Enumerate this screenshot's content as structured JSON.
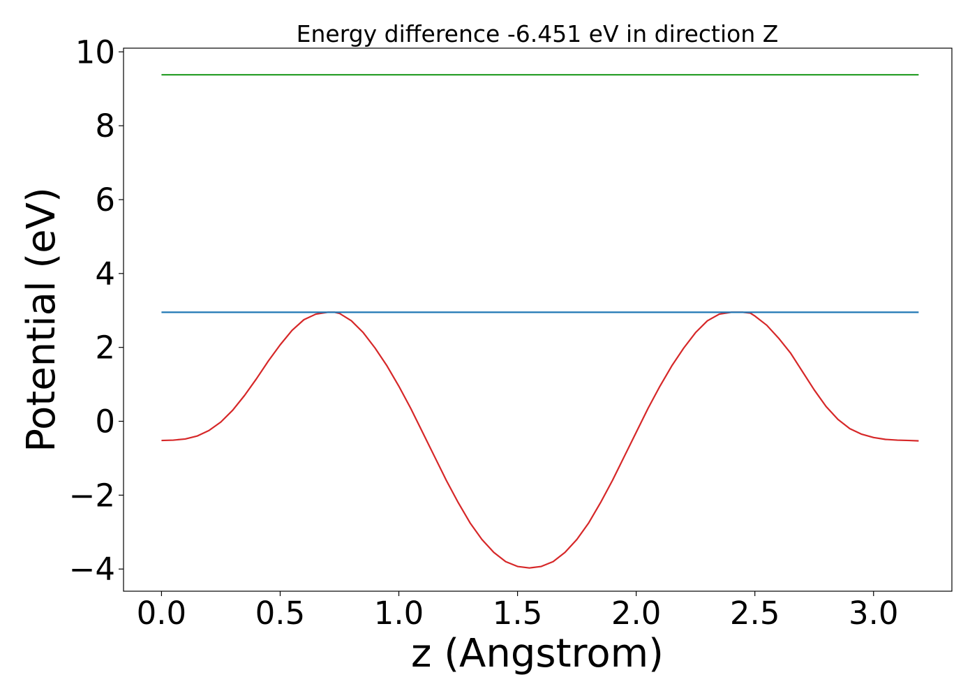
{
  "chart_data": {
    "type": "line",
    "title": "Energy difference -6.451 eV in direction Z",
    "xlabel": "z (Angstrom)",
    "ylabel": "Potential (eV)",
    "xlim": [
      -0.16,
      3.33
    ],
    "ylim": [
      -4.6,
      10.1
    ],
    "xticks": [
      0.0,
      0.5,
      1.0,
      1.5,
      2.0,
      2.5,
      3.0
    ],
    "xtick_labels": [
      "0.0",
      "0.5",
      "1.0",
      "1.5",
      "2.0",
      "2.5",
      "3.0"
    ],
    "yticks": [
      -4,
      -2,
      0,
      2,
      4,
      6,
      8,
      10
    ],
    "ytick_labels": [
      "−4",
      "−2",
      "0",
      "2",
      "4",
      "6",
      "8",
      "10"
    ],
    "grid": false,
    "series": [
      {
        "color": "#d62728",
        "x": [
          0.0,
          0.05,
          0.1,
          0.15,
          0.2,
          0.25,
          0.3,
          0.35,
          0.4,
          0.45,
          0.5,
          0.55,
          0.6,
          0.65,
          0.7,
          0.73,
          0.75,
          0.8,
          0.85,
          0.9,
          0.95,
          1.0,
          1.05,
          1.1,
          1.15,
          1.2,
          1.25,
          1.3,
          1.35,
          1.4,
          1.45,
          1.5,
          1.55,
          1.6,
          1.65,
          1.7,
          1.75,
          1.8,
          1.85,
          1.9,
          1.95,
          2.0,
          2.05,
          2.1,
          2.15,
          2.2,
          2.25,
          2.3,
          2.35,
          2.4,
          2.45,
          2.48,
          2.5,
          2.55,
          2.6,
          2.65,
          2.7,
          2.75,
          2.8,
          2.85,
          2.9,
          2.95,
          3.0,
          3.05,
          3.1,
          3.15,
          3.19
        ],
        "y": [
          -0.52,
          -0.51,
          -0.48,
          -0.4,
          -0.25,
          -0.02,
          0.3,
          0.7,
          1.15,
          1.63,
          2.07,
          2.46,
          2.75,
          2.9,
          2.95,
          2.95,
          2.92,
          2.72,
          2.4,
          1.98,
          1.5,
          0.95,
          0.35,
          -0.3,
          -0.95,
          -1.6,
          -2.2,
          -2.75,
          -3.2,
          -3.55,
          -3.8,
          -3.93,
          -3.97,
          -3.93,
          -3.8,
          -3.55,
          -3.2,
          -2.75,
          -2.2,
          -1.6,
          -0.95,
          -0.3,
          0.35,
          0.95,
          1.5,
          1.98,
          2.4,
          2.72,
          2.9,
          2.95,
          2.95,
          2.93,
          2.85,
          2.6,
          2.25,
          1.85,
          1.35,
          0.85,
          0.4,
          0.05,
          -0.2,
          -0.35,
          -0.44,
          -0.49,
          -0.51,
          -0.52,
          -0.53
        ]
      },
      {
        "color": "#1f77b4",
        "x": [
          0.0,
          3.19
        ],
        "y": [
          2.95,
          2.95
        ]
      },
      {
        "color": "#2ca02c",
        "x": [
          0.0,
          3.19
        ],
        "y": [
          9.38,
          9.38
        ]
      }
    ]
  }
}
